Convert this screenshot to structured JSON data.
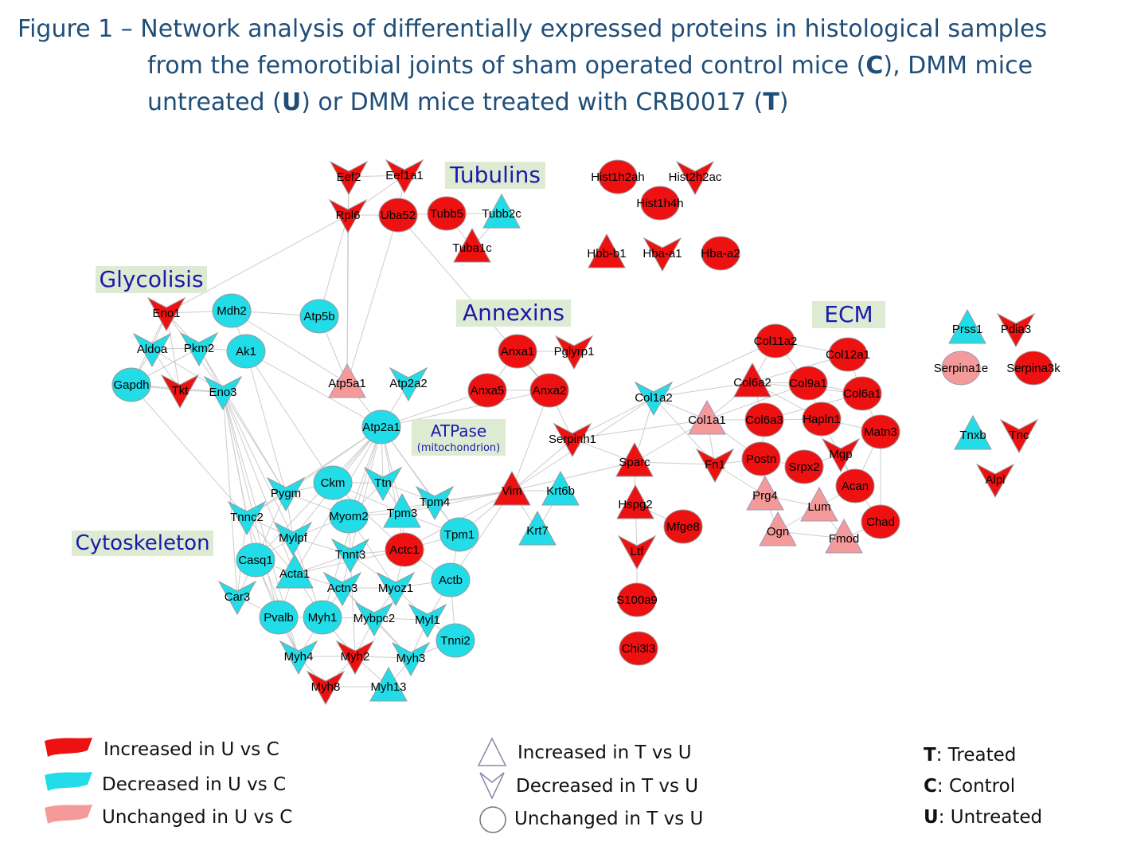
{
  "title": {
    "prefix": "Figure 1 – Network analysis of differentially expressed proteins in histological samples",
    "line2_a": "from the femorotibial joints of  sham operated control mice (",
    "c": "C",
    "line2_b": "), DMM mice",
    "line3_a": "untreated (",
    "u": "U",
    "line3_b": ") or DMM mice treated with CRB0017 (",
    "t": "T",
    "line3_c": ")"
  },
  "colors": {
    "increased_u_vs_c": "#ee1111",
    "decreased_u_vs_c": "#22dde8",
    "unchanged_u_vs_c": "#f59a9a",
    "edge": "#cccccc",
    "group_label_text": "#1a1aaa",
    "group_label_bg": "#dcebd2"
  },
  "groups": [
    {
      "id": "tubulins",
      "label": "Tubulins"
    },
    {
      "id": "glycolisis",
      "label": "Glycolisis"
    },
    {
      "id": "annexins",
      "label": "Annexins"
    },
    {
      "id": "ecm",
      "label": "ECM"
    },
    {
      "id": "atpase",
      "label": "ATPase",
      "sublabel": "(mitochondrion)"
    },
    {
      "id": "cytoskeleton",
      "label": "Cytoskeleton"
    }
  ],
  "nodes": [
    {
      "id": "Eef2",
      "c": "red",
      "s": "v"
    },
    {
      "id": "Eef1a1",
      "c": "red",
      "s": "v"
    },
    {
      "id": "Rpl6",
      "c": "red",
      "s": "v"
    },
    {
      "id": "Uba52",
      "c": "red",
      "s": "o"
    },
    {
      "id": "Tubb5",
      "c": "red",
      "s": "o"
    },
    {
      "id": "Tubb2c",
      "c": "cyan",
      "s": "t"
    },
    {
      "id": "Tuba1c",
      "c": "red",
      "s": "t"
    },
    {
      "id": "Hist1h2ah",
      "c": "red",
      "s": "o"
    },
    {
      "id": "Hist2h2ac",
      "c": "red",
      "s": "v"
    },
    {
      "id": "Hist1h4h",
      "c": "red",
      "s": "o"
    },
    {
      "id": "Hbb-b1",
      "c": "red",
      "s": "t"
    },
    {
      "id": "Hba-a1",
      "c": "red",
      "s": "v"
    },
    {
      "id": "Hba-a2",
      "c": "red",
      "s": "o"
    },
    {
      "id": "Eno1",
      "c": "red",
      "s": "v"
    },
    {
      "id": "Mdh2",
      "c": "cyan",
      "s": "o"
    },
    {
      "id": "Aldoa",
      "c": "cyan",
      "s": "v"
    },
    {
      "id": "Pkm2",
      "c": "cyan",
      "s": "v"
    },
    {
      "id": "Ak1",
      "c": "cyan",
      "s": "o"
    },
    {
      "id": "Gapdh",
      "c": "cyan",
      "s": "o"
    },
    {
      "id": "Tkt",
      "c": "red",
      "s": "v"
    },
    {
      "id": "Eno3",
      "c": "cyan",
      "s": "v"
    },
    {
      "id": "Atp5b",
      "c": "cyan",
      "s": "o"
    },
    {
      "id": "Atp5a1",
      "c": "pink",
      "s": "t"
    },
    {
      "id": "Atp2a2",
      "c": "cyan",
      "s": "v"
    },
    {
      "id": "Atp2a1",
      "c": "cyan",
      "s": "o"
    },
    {
      "id": "Anxa1",
      "c": "red",
      "s": "o"
    },
    {
      "id": "Pglyrp1",
      "c": "red",
      "s": "v"
    },
    {
      "id": "Anxa5",
      "c": "red",
      "s": "o"
    },
    {
      "id": "Anxa2",
      "c": "red",
      "s": "o"
    },
    {
      "id": "Serpinh1",
      "c": "red",
      "s": "v"
    },
    {
      "id": "Col1a2",
      "c": "cyan",
      "s": "v"
    },
    {
      "id": "Col1a1",
      "c": "pink",
      "s": "t"
    },
    {
      "id": "Col11a2",
      "c": "red",
      "s": "o"
    },
    {
      "id": "Col12a1",
      "c": "red",
      "s": "o"
    },
    {
      "id": "Col6a2",
      "c": "red",
      "s": "t"
    },
    {
      "id": "Col9a1",
      "c": "red",
      "s": "o"
    },
    {
      "id": "Col6a1",
      "c": "red",
      "s": "o"
    },
    {
      "id": "Col6a3",
      "c": "red",
      "s": "o"
    },
    {
      "id": "Hapln1",
      "c": "red",
      "s": "o"
    },
    {
      "id": "Matn3",
      "c": "red",
      "s": "o"
    },
    {
      "id": "Postn",
      "c": "red",
      "s": "o"
    },
    {
      "id": "Srpx2",
      "c": "red",
      "s": "o"
    },
    {
      "id": "Mgp",
      "c": "red",
      "s": "v"
    },
    {
      "id": "Fn1",
      "c": "red",
      "s": "v"
    },
    {
      "id": "Acan",
      "c": "red",
      "s": "o"
    },
    {
      "id": "Prg4",
      "c": "pink",
      "s": "t"
    },
    {
      "id": "Lum",
      "c": "pink",
      "s": "t"
    },
    {
      "id": "Chad",
      "c": "red",
      "s": "o"
    },
    {
      "id": "Ogn",
      "c": "pink",
      "s": "t"
    },
    {
      "id": "Fmod",
      "c": "pink",
      "s": "t"
    },
    {
      "id": "Sparc",
      "c": "red",
      "s": "t"
    },
    {
      "id": "Hspg2",
      "c": "red",
      "s": "t"
    },
    {
      "id": "Mfge8",
      "c": "red",
      "s": "o"
    },
    {
      "id": "Ltf",
      "c": "red",
      "s": "v"
    },
    {
      "id": "S100a9",
      "c": "red",
      "s": "o"
    },
    {
      "id": "Chi3l3",
      "c": "red",
      "s": "o"
    },
    {
      "id": "Vim",
      "c": "red",
      "s": "t"
    },
    {
      "id": "Krt6b",
      "c": "cyan",
      "s": "t"
    },
    {
      "id": "Krt7",
      "c": "cyan",
      "s": "t"
    },
    {
      "id": "Prss1",
      "c": "cyan",
      "s": "t"
    },
    {
      "id": "Pdia3",
      "c": "red",
      "s": "v"
    },
    {
      "id": "Serpina1e",
      "c": "pink",
      "s": "o"
    },
    {
      "id": "Serpina3k",
      "c": "red",
      "s": "o"
    },
    {
      "id": "Tnxb",
      "c": "cyan",
      "s": "t"
    },
    {
      "id": "Tnc",
      "c": "red",
      "s": "v"
    },
    {
      "id": "Alpl",
      "c": "red",
      "s": "v"
    },
    {
      "id": "Pygm",
      "c": "cyan",
      "s": "v"
    },
    {
      "id": "Ckm",
      "c": "cyan",
      "s": "o"
    },
    {
      "id": "Ttn",
      "c": "cyan",
      "s": "v"
    },
    {
      "id": "Tnnc2",
      "c": "cyan",
      "s": "v"
    },
    {
      "id": "Myom2",
      "c": "cyan",
      "s": "o"
    },
    {
      "id": "Tpm3",
      "c": "cyan",
      "s": "t"
    },
    {
      "id": "Tpm4",
      "c": "cyan",
      "s": "v"
    },
    {
      "id": "Tpm1",
      "c": "cyan",
      "s": "o"
    },
    {
      "id": "Mylpf",
      "c": "cyan",
      "s": "v"
    },
    {
      "id": "Casq1",
      "c": "cyan",
      "s": "o"
    },
    {
      "id": "Tnnt3",
      "c": "cyan",
      "s": "v"
    },
    {
      "id": "Actc1",
      "c": "red",
      "s": "o"
    },
    {
      "id": "Acta1",
      "c": "cyan",
      "s": "t"
    },
    {
      "id": "Actb",
      "c": "cyan",
      "s": "o"
    },
    {
      "id": "Car3",
      "c": "cyan",
      "s": "v"
    },
    {
      "id": "Actn3",
      "c": "cyan",
      "s": "v"
    },
    {
      "id": "Myoz1",
      "c": "cyan",
      "s": "v"
    },
    {
      "id": "Pvalb",
      "c": "cyan",
      "s": "o"
    },
    {
      "id": "Myh1",
      "c": "cyan",
      "s": "o"
    },
    {
      "id": "Mybpc2",
      "c": "cyan",
      "s": "v"
    },
    {
      "id": "Myl1",
      "c": "cyan",
      "s": "v"
    },
    {
      "id": "Tnni2",
      "c": "cyan",
      "s": "o"
    },
    {
      "id": "Myh4",
      "c": "cyan",
      "s": "v"
    },
    {
      "id": "Myh2",
      "c": "red",
      "s": "v"
    },
    {
      "id": "Myh3",
      "c": "cyan",
      "s": "v"
    },
    {
      "id": "Myh8",
      "c": "red",
      "s": "v"
    },
    {
      "id": "Myh13",
      "c": "cyan",
      "s": "t"
    }
  ],
  "edges": [
    [
      "Eef2",
      "Rpl6"
    ],
    [
      "Eef2",
      "Eef1a1"
    ],
    [
      "Eef1a1",
      "Rpl6"
    ],
    [
      "Eef1a1",
      "Uba52"
    ],
    [
      "Rpl6",
      "Uba52"
    ],
    [
      "Rpl6",
      "Atp5b"
    ],
    [
      "Rpl6",
      "Atp5a1"
    ],
    [
      "Rpl6",
      "Eno1"
    ],
    [
      "Uba52",
      "Tubb5"
    ],
    [
      "Uba52",
      "Anxa2"
    ],
    [
      "Uba52",
      "Atp5a1"
    ],
    [
      "Tubb5",
      "Tubb2c"
    ],
    [
      "Tubb5",
      "Tuba1c"
    ],
    [
      "Tubb2c",
      "Tuba1c"
    ],
    [
      "Eef2",
      "Atp5a1"
    ],
    [
      "Eno1",
      "Aldoa"
    ],
    [
      "Eno1",
      "Pkm2"
    ],
    [
      "Eno1",
      "Gapdh"
    ],
    [
      "Eno1",
      "Tkt"
    ],
    [
      "Eno1",
      "Eno3"
    ],
    [
      "Eno1",
      "Mdh2"
    ],
    [
      "Aldoa",
      "Pkm2"
    ],
    [
      "Aldoa",
      "Gapdh"
    ],
    [
      "Aldoa",
      "Tkt"
    ],
    [
      "Aldoa",
      "Eno3"
    ],
    [
      "Pkm2",
      "Gapdh"
    ],
    [
      "Pkm2",
      "Eno3"
    ],
    [
      "Pkm2",
      "Ak1"
    ],
    [
      "Gapdh",
      "Tkt"
    ],
    [
      "Gapdh",
      "Eno3"
    ],
    [
      "Tkt",
      "Eno3"
    ],
    [
      "Mdh2",
      "Ak1"
    ],
    [
      "Mdh2",
      "Atp5b"
    ],
    [
      "Mdh2",
      "Atp5a1"
    ],
    [
      "Ak1",
      "Atp2a1"
    ],
    [
      "Atp5b",
      "Atp5a1"
    ],
    [
      "Atp5a1",
      "Atp2a1"
    ],
    [
      "Atp2a2",
      "Atp2a1"
    ],
    [
      "Anxa1",
      "Pglyrp1"
    ],
    [
      "Anxa1",
      "Anxa5"
    ],
    [
      "Anxa1",
      "Anxa2"
    ],
    [
      "Anxa5",
      "Anxa2"
    ],
    [
      "Anxa2",
      "Atp2a1"
    ],
    [
      "Anxa2",
      "Serpinh1"
    ],
    [
      "Anxa2",
      "Vim"
    ],
    [
      "Anxa5",
      "Atp2a1"
    ],
    [
      "Serpinh1",
      "Col1a2"
    ],
    [
      "Serpinh1",
      "Col1a1"
    ],
    [
      "Serpinh1",
      "Vim"
    ],
    [
      "Serpinh1",
      "Sparc"
    ],
    [
      "Col1a2",
      "Col1a1"
    ],
    [
      "Col1a2",
      "Col6a2"
    ],
    [
      "Col1a2",
      "Col11a2"
    ],
    [
      "Col1a2",
      "Sparc"
    ],
    [
      "Col1a2",
      "Fn1"
    ],
    [
      "Col1a2",
      "Vim"
    ],
    [
      "Col1a1",
      "Col6a2"
    ],
    [
      "Col1a1",
      "Col6a3"
    ],
    [
      "Col1a1",
      "Postn"
    ],
    [
      "Col1a1",
      "Fn1"
    ],
    [
      "Col1a1",
      "Sparc"
    ],
    [
      "Col1a1",
      "Col9a1"
    ],
    [
      "Col11a2",
      "Col12a1"
    ],
    [
      "Col11a2",
      "Col6a2"
    ],
    [
      "Col11a2",
      "Col9a1"
    ],
    [
      "Col12a1",
      "Col6a1"
    ],
    [
      "Col12a1",
      "Col6a2"
    ],
    [
      "Col6a2",
      "Col9a1"
    ],
    [
      "Col6a2",
      "Col6a1"
    ],
    [
      "Col6a2",
      "Col6a3"
    ],
    [
      "Col6a2",
      "Hapln1"
    ],
    [
      "Col9a1",
      "Col6a1"
    ],
    [
      "Col9a1",
      "Hapln1"
    ],
    [
      "Col6a1",
      "Col6a3"
    ],
    [
      "Col6a1",
      "Matn3"
    ],
    [
      "Col6a3",
      "Hapln1"
    ],
    [
      "Col6a3",
      "Postn"
    ],
    [
      "Hapln1",
      "Matn3"
    ],
    [
      "Hapln1",
      "Acan"
    ],
    [
      "Matn3",
      "Acan"
    ],
    [
      "Matn3",
      "Chad"
    ],
    [
      "Postn",
      "Srpx2"
    ],
    [
      "Postn",
      "Fn1"
    ],
    [
      "Postn",
      "Prg4"
    ],
    [
      "Srpx2",
      "Mgp"
    ],
    [
      "Mgp",
      "Acan"
    ],
    [
      "Fn1",
      "Sparc"
    ],
    [
      "Fn1",
      "Prg4"
    ],
    [
      "Acan",
      "Lum"
    ],
    [
      "Acan",
      "Chad"
    ],
    [
      "Prg4",
      "Lum"
    ],
    [
      "Prg4",
      "Ogn"
    ],
    [
      "Lum",
      "Ogn"
    ],
    [
      "Lum",
      "Fmod"
    ],
    [
      "Ogn",
      "Fmod"
    ],
    [
      "Chad",
      "Fmod"
    ],
    [
      "Sparc",
      "Hspg2"
    ],
    [
      "Sparc",
      "Vim"
    ],
    [
      "Hspg2",
      "Ltf"
    ],
    [
      "Hspg2",
      "Mfge8"
    ],
    [
      "Ltf",
      "S100a9"
    ],
    [
      "Vim",
      "Krt6b"
    ],
    [
      "Vim",
      "Krt7"
    ],
    [
      "Krt6b",
      "Krt7"
    ],
    [
      "Vim",
      "Tpm4"
    ],
    [
      "Vim",
      "Tpm1"
    ],
    [
      "Vim",
      "Actb"
    ],
    [
      "Vim",
      "Actc1"
    ],
    [
      "Vim",
      "Tpm3"
    ],
    [
      "Vim",
      "Myom2"
    ],
    [
      "Atp2a1",
      "Ckm"
    ],
    [
      "Atp2a1",
      "Ttn"
    ],
    [
      "Atp2a1",
      "Pygm"
    ],
    [
      "Atp2a1",
      "Tpm3"
    ],
    [
      "Atp2a1",
      "Tpm4"
    ],
    [
      "Atp2a1",
      "Myom2"
    ],
    [
      "Atp2a1",
      "Mylpf"
    ],
    [
      "Atp2a1",
      "Tnnt3"
    ],
    [
      "Atp2a1",
      "Casq1"
    ],
    [
      "Atp2a1",
      "Tnnc2"
    ],
    [
      "Atp2a1",
      "Acta1"
    ],
    [
      "Atp2a1",
      "Actc1"
    ],
    [
      "Atp2a1",
      "Myh1"
    ],
    [
      "Atp2a1",
      "Tpm1"
    ],
    [
      "Eno3",
      "Pygm"
    ],
    [
      "Eno3",
      "Tnnc2"
    ],
    [
      "Eno3",
      "Casq1"
    ],
    [
      "Eno3",
      "Mylpf"
    ],
    [
      "Eno3",
      "Acta1"
    ],
    [
      "Eno3",
      "Myh4"
    ],
    [
      "Eno3",
      "Pvalb"
    ],
    [
      "Eno3",
      "Car3"
    ],
    [
      "Gapdh",
      "Tnnc2"
    ],
    [
      "Pkm2",
      "Pygm"
    ],
    [
      "Ak1",
      "Ckm"
    ],
    [
      "Ak1",
      "Pygm"
    ],
    [
      "Pygm",
      "Ckm"
    ],
    [
      "Pygm",
      "Tnnc2"
    ],
    [
      "Pygm",
      "Mylpf"
    ],
    [
      "Pygm",
      "Myom2"
    ],
    [
      "Ckm",
      "Ttn"
    ],
    [
      "Ckm",
      "Myom2"
    ],
    [
      "Ckm",
      "Tpm3"
    ],
    [
      "Ttn",
      "Tpm3"
    ],
    [
      "Ttn",
      "Tpm4"
    ],
    [
      "Ttn",
      "Myom2"
    ],
    [
      "Tnnc2",
      "Mylpf"
    ],
    [
      "Tnnc2",
      "Casq1"
    ],
    [
      "Tnnc2",
      "Acta1"
    ],
    [
      "Tnnc2",
      "Car3"
    ],
    [
      "Myom2",
      "Tnnt3"
    ],
    [
      "Myom2",
      "Tpm3"
    ],
    [
      "Myom2",
      "Mylpf"
    ],
    [
      "Tpm3",
      "Tpm4"
    ],
    [
      "Tpm3",
      "Tpm1"
    ],
    [
      "Tpm3",
      "Actc1"
    ],
    [
      "Tpm4",
      "Tpm1"
    ],
    [
      "Tpm1",
      "Actb"
    ],
    [
      "Tpm1",
      "Actc1"
    ],
    [
      "Mylpf",
      "Casq1"
    ],
    [
      "Mylpf",
      "Acta1"
    ],
    [
      "Mylpf",
      "Tnnt3"
    ],
    [
      "Casq1",
      "Acta1"
    ],
    [
      "Casq1",
      "Car3"
    ],
    [
      "Casq1",
      "Pvalb"
    ],
    [
      "Tnnt3",
      "Actc1"
    ],
    [
      "Tnnt3",
      "Acta1"
    ],
    [
      "Tnnt3",
      "Actn3"
    ],
    [
      "Tnnt3",
      "Myoz1"
    ],
    [
      "Actc1",
      "Actb"
    ],
    [
      "Actc1",
      "Myoz1"
    ],
    [
      "Actc1",
      "Acta1"
    ],
    [
      "Acta1",
      "Actn3"
    ],
    [
      "Acta1",
      "Pvalb"
    ],
    [
      "Acta1",
      "Myh1"
    ],
    [
      "Actb",
      "Myoz1"
    ],
    [
      "Actb",
      "Myl1"
    ],
    [
      "Actb",
      "Tnni2"
    ],
    [
      "Actn3",
      "Myoz1"
    ],
    [
      "Actn3",
      "Myh1"
    ],
    [
      "Actn3",
      "Mybpc2"
    ],
    [
      "Myoz1",
      "Mybpc2"
    ],
    [
      "Myoz1",
      "Myl1"
    ],
    [
      "Pvalb",
      "Myh1"
    ],
    [
      "Pvalb",
      "Myh4"
    ],
    [
      "Myh1",
      "Mybpc2"
    ],
    [
      "Myh1",
      "Myh4"
    ],
    [
      "Myh1",
      "Myh2"
    ],
    [
      "Mybpc2",
      "Myl1"
    ],
    [
      "Mybpc2",
      "Myh2"
    ],
    [
      "Mybpc2",
      "Myh3"
    ],
    [
      "Myl1",
      "Tnni2"
    ],
    [
      "Myl1",
      "Myh3"
    ],
    [
      "Tnni2",
      "Myh3"
    ],
    [
      "Myh4",
      "Myh2"
    ],
    [
      "Myh4",
      "Myh8"
    ],
    [
      "Myh2",
      "Myh3"
    ],
    [
      "Myh2",
      "Myh8"
    ],
    [
      "Myh2",
      "Myh13"
    ],
    [
      "Myh3",
      "Myh13"
    ],
    [
      "Myh8",
      "Myh13"
    ],
    [
      "Myh3",
      "Tnni2"
    ],
    [
      "Car3",
      "Pvalb"
    ],
    [
      "Mylpf",
      "Myh1"
    ],
    [
      "Casq1",
      "Myh4"
    ],
    [
      "Tnnc2",
      "Myh4"
    ],
    [
      "Tnnt3",
      "Myh2"
    ],
    [
      "Actn3",
      "Myh3"
    ],
    [
      "Myom2",
      "Myoz1"
    ],
    [
      "Ckm",
      "Actc1"
    ],
    [
      "Pygm",
      "Casq1"
    ]
  ],
  "legend": {
    "color_items": [
      {
        "key": "increased_u_vs_c",
        "label": "Increased in U vs C"
      },
      {
        "key": "decreased_u_vs_c",
        "label": "Decreased in U vs C"
      },
      {
        "key": "unchanged_u_vs_c",
        "label": "Unchanged in U vs C"
      }
    ],
    "shape_items": [
      {
        "shape": "triangle",
        "label": "Increased in T vs U"
      },
      {
        "shape": "v",
        "label": "Decreased in T vs U"
      },
      {
        "shape": "circle",
        "label": "Unchanged in T vs U"
      }
    ],
    "abbrev": [
      {
        "letter": "T",
        "text": ": Treated"
      },
      {
        "letter": "C",
        "text": ": Control"
      },
      {
        "letter": "U",
        "text": ": Untreated"
      }
    ]
  }
}
